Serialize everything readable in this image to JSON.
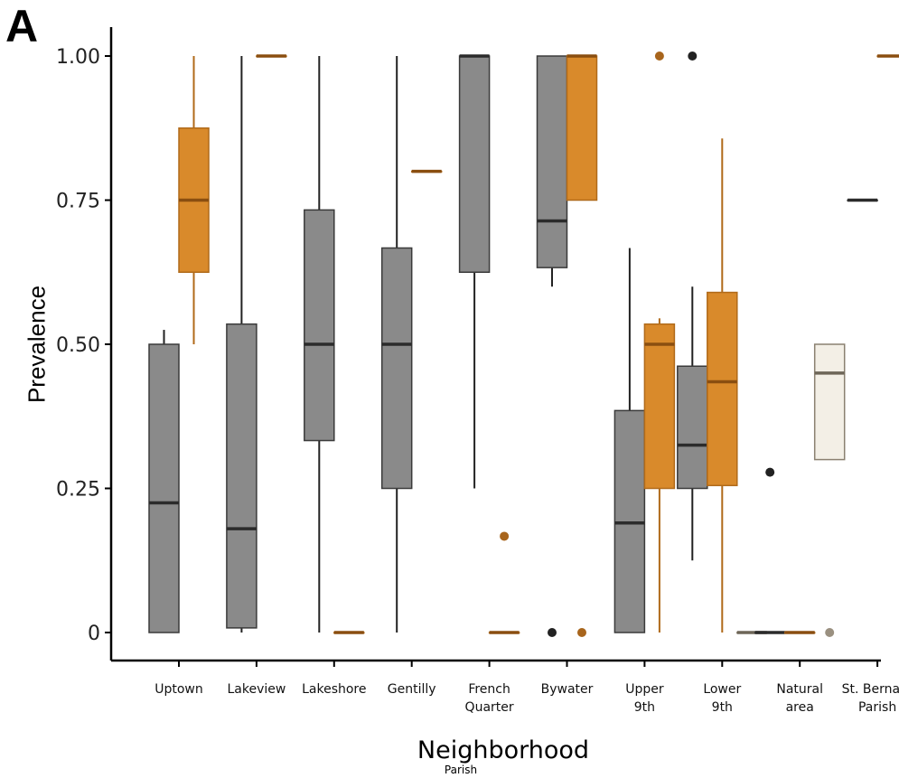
{
  "panel_label": "A",
  "legend_title": "Parish",
  "colors": {
    "orleans": "#8a8a8a",
    "st_bernard": "#d98a2b",
    "other": "#f3efe6",
    "median": "#2b2b2b",
    "axis": "#000000"
  },
  "chart_data": {
    "type": "boxplot",
    "title": "",
    "xlabel": "Neighborhood",
    "ylabel": "Prevalence",
    "ylim": [
      0,
      1
    ],
    "yticks": [
      0,
      0.25,
      0.5,
      0.75,
      1.0
    ],
    "ytick_labels": [
      "0",
      "0.25",
      "0.50",
      "0.75",
      "1.00"
    ],
    "categories": [
      "Uptown",
      "Lakeview",
      "Lakeshore",
      "Gentilly",
      "French Quarter",
      "Bywater",
      "Upper 9th",
      "Lower 9th",
      "Natural area",
      "St. Bernard Parish"
    ],
    "category_labels": [
      [
        "Uptown"
      ],
      [
        "Lakeview"
      ],
      [
        "Lakeshore"
      ],
      [
        "Gentilly"
      ],
      [
        "French",
        "Quarter"
      ],
      [
        "Bywater"
      ],
      [
        "Upper",
        "9th"
      ],
      [
        "Lower",
        "9th"
      ],
      [
        "Natural",
        "area"
      ],
      [
        "St. Bernard",
        "Parish"
      ]
    ],
    "grid": false,
    "boxes": [
      {
        "category": 0,
        "color": "orleans",
        "wlow": 0,
        "q1": 0,
        "median": 0.225,
        "q3": 0.5,
        "whigh": 0.525,
        "outliers": []
      },
      {
        "category": 0,
        "color": "st_bernard",
        "wlow": 0.5,
        "q1": 0.625,
        "median": 0.75,
        "q3": 0.875,
        "whigh": 1.0,
        "outliers": []
      },
      {
        "category": 1,
        "color": "orleans",
        "wlow": 0,
        "q1": 0.008,
        "median": 0.18,
        "q3": 0.535,
        "whigh": 1.0,
        "outliers": []
      },
      {
        "category": 1,
        "color": "st_bernard",
        "wlow": 1.0,
        "q1": 1.0,
        "median": 1.0,
        "q3": 1.0,
        "whigh": 1.0,
        "outliers": []
      },
      {
        "category": 2,
        "color": "orleans",
        "wlow": 0,
        "q1": 0.333,
        "median": 0.5,
        "q3": 0.733,
        "whigh": 1.0,
        "outliers": []
      },
      {
        "category": 2,
        "color": "st_bernard",
        "wlow": 0,
        "q1": 0,
        "median": 0,
        "q3": 0,
        "whigh": 0,
        "outliers": []
      },
      {
        "category": 3,
        "color": "orleans",
        "wlow": 0,
        "q1": 0.25,
        "median": 0.5,
        "q3": 0.667,
        "whigh": 1.0,
        "outliers": []
      },
      {
        "category": 3,
        "color": "st_bernard",
        "wlow": 0.8,
        "q1": 0.8,
        "median": 0.8,
        "q3": 0.8,
        "whigh": 0.8,
        "outliers": []
      },
      {
        "category": 4,
        "color": "orleans",
        "wlow": 0.25,
        "q1": 0.625,
        "median": 1.0,
        "q3": 1.0,
        "whigh": 1.0,
        "outliers": []
      },
      {
        "category": 4,
        "color": "st_bernard",
        "wlow": 0,
        "q1": 0,
        "median": 0,
        "q3": 0,
        "whigh": 0,
        "outliers": [
          0.167
        ]
      },
      {
        "category": 5,
        "color": "orleans",
        "wlow": 0.6,
        "q1": 0.633,
        "median": 0.714,
        "q3": 1.0,
        "whigh": 1.0,
        "outliers": [
          0
        ]
      },
      {
        "category": 5,
        "color": "st_bernard",
        "wlow": 0.75,
        "q1": 0.75,
        "median": 1.0,
        "q3": 1.0,
        "whigh": 1.0,
        "outliers": [
          0
        ]
      },
      {
        "category": 6,
        "color": "orleans",
        "wlow": 0,
        "q1": 0,
        "median": 0.19,
        "q3": 0.385,
        "whigh": 0.667,
        "outliers": []
      },
      {
        "category": 6,
        "color": "st_bernard",
        "wlow": 0,
        "q1": 0.25,
        "median": 0.5,
        "q3": 0.535,
        "whigh": 0.545,
        "outliers": [
          1.0
        ]
      },
      {
        "category": 7,
        "color": "orleans",
        "wlow": 0.125,
        "q1": 0.25,
        "median": 0.325,
        "q3": 0.462,
        "whigh": 0.6,
        "outliers": [
          1.0
        ]
      },
      {
        "category": 7,
        "color": "st_bernard",
        "wlow": 0,
        "q1": 0.255,
        "median": 0.435,
        "q3": 0.59,
        "whigh": 0.857,
        "outliers": []
      },
      {
        "category": 7,
        "color": "other",
        "wlow": 0,
        "q1": 0,
        "median": 0,
        "q3": 0,
        "whigh": 0,
        "outliers": []
      },
      {
        "category": 8,
        "color": "orleans",
        "wlow": 0,
        "q1": 0,
        "median": 0,
        "q3": 0,
        "whigh": 0,
        "outliers": [
          0.278
        ]
      },
      {
        "category": 8,
        "color": "st_bernard",
        "wlow": 0,
        "q1": 0,
        "median": 0,
        "q3": 0,
        "whigh": 0,
        "outliers": []
      },
      {
        "category": 8,
        "color": "other",
        "wlow": 0.3,
        "q1": 0.3,
        "median": 0.45,
        "q3": 0.5,
        "whigh": 0.5,
        "outliers": [
          0
        ]
      },
      {
        "category": 9,
        "color": "orleans",
        "wlow": 0.75,
        "q1": 0.75,
        "median": 0.75,
        "q3": 0.75,
        "whigh": 0.75,
        "outliers": []
      },
      {
        "category": 9,
        "color": "st_bernard",
        "wlow": 1.0,
        "q1": 1.0,
        "median": 1.0,
        "q3": 1.0,
        "whigh": 1.0,
        "outliers": []
      }
    ]
  }
}
